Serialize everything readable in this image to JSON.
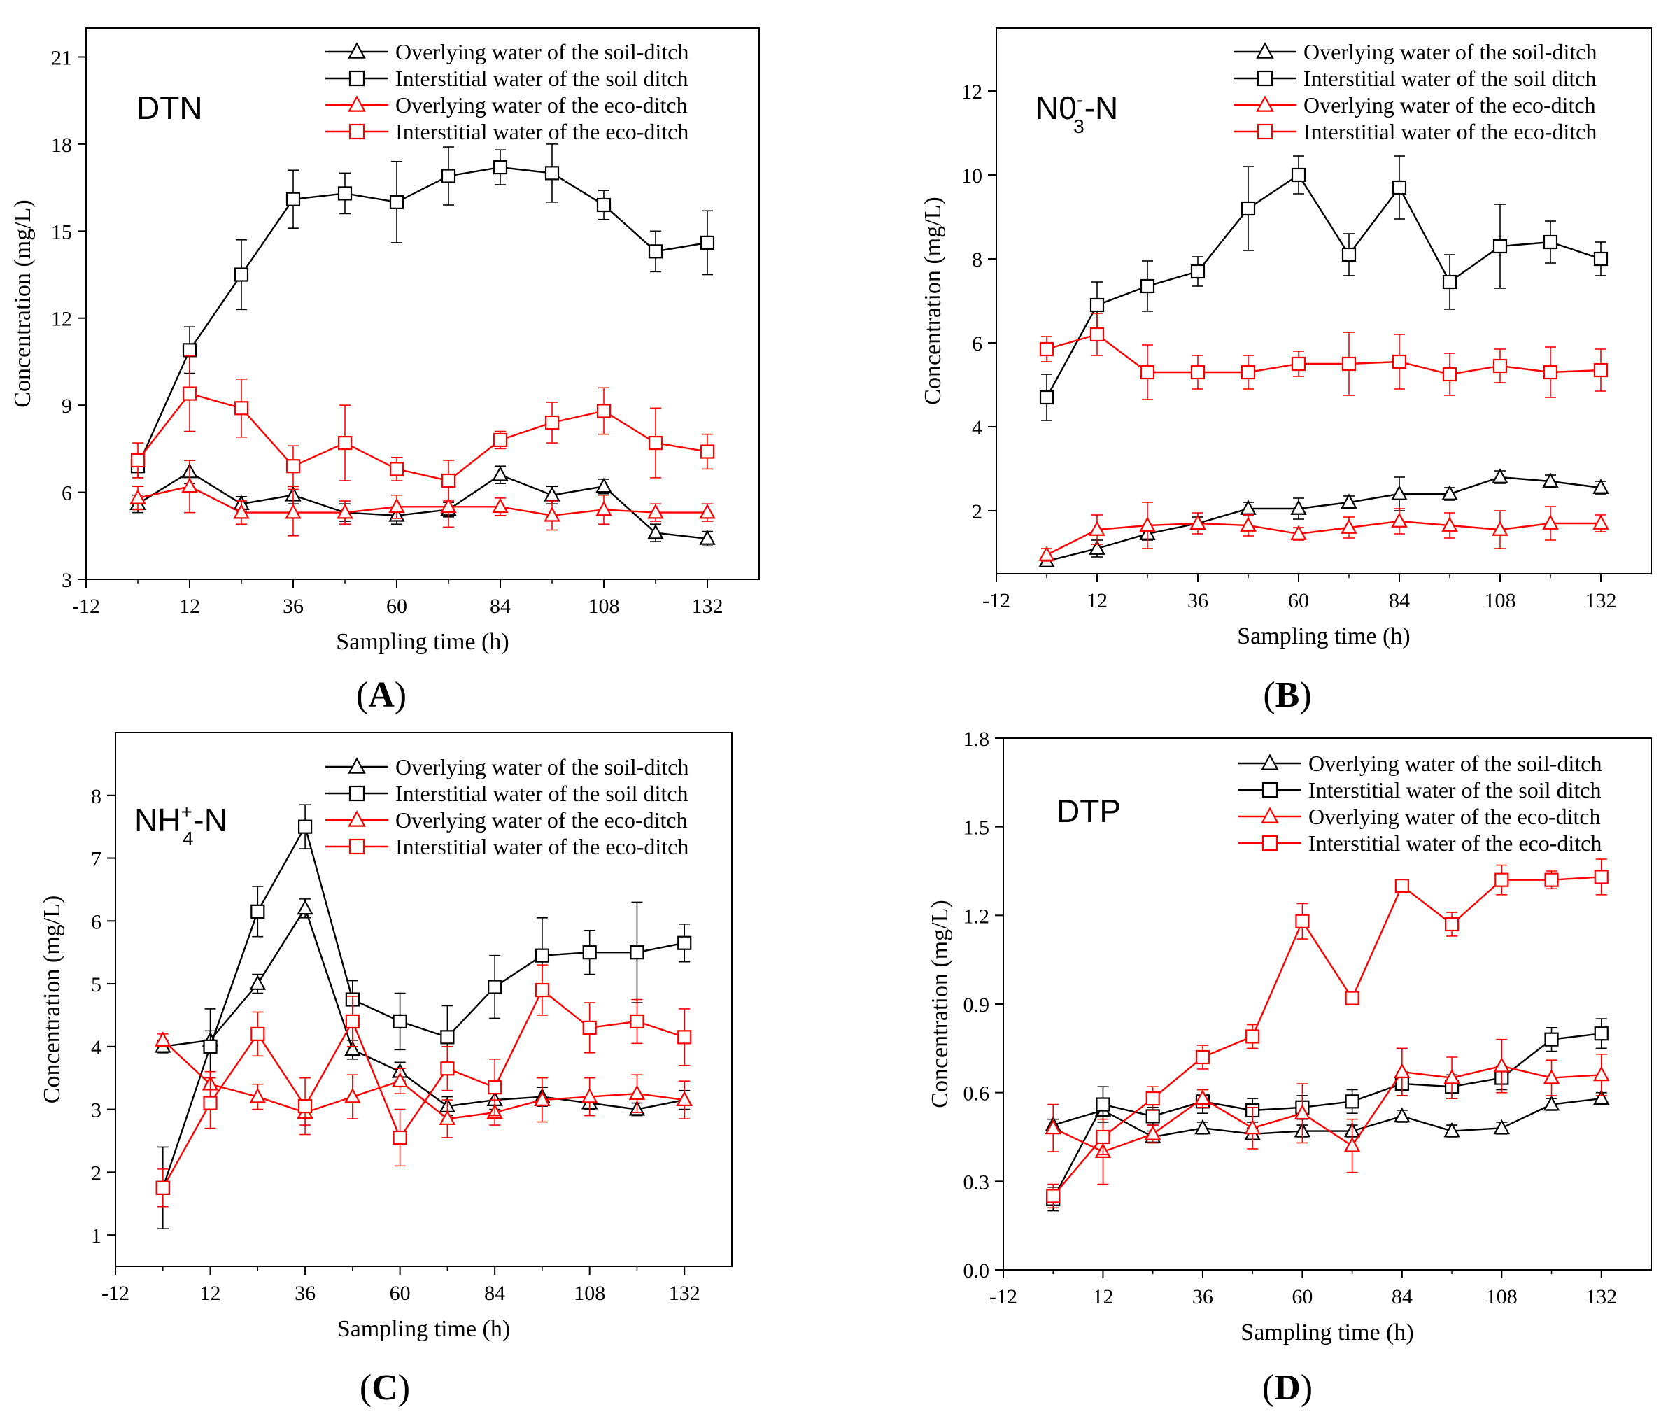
{
  "figure": {
    "x_ticks": [
      "-12",
      "12",
      "36",
      "60",
      "84",
      "108",
      "132"
    ],
    "legend_order_note": ""
  },
  "chart_data": [
    {
      "id": "A",
      "type": "line",
      "panel_label": "A",
      "title_main": "DTN",
      "title_sup": "",
      "title_sub": "",
      "title_tail": "",
      "xlabel": "Sampling time (h)",
      "ylabel": "Concentration (mg/L)",
      "xlim": [
        -12,
        144
      ],
      "ylim": [
        3,
        22
      ],
      "yticks": [
        3,
        6,
        9,
        12,
        15,
        18,
        21
      ],
      "ytick_labels": [
        "3",
        "6",
        "9",
        "12",
        "15",
        "18",
        "21"
      ],
      "x": [
        0,
        12,
        24,
        36,
        48,
        60,
        72,
        84,
        96,
        108,
        120,
        132
      ],
      "series": [
        {
          "name": "Overlying water of the soil-ditch",
          "color": "#000000",
          "marker": "triangle",
          "values": [
            5.6,
            6.7,
            5.6,
            5.9,
            5.3,
            5.2,
            5.4,
            6.6,
            5.9,
            6.2,
            4.6,
            4.4
          ],
          "errors": [
            0.3,
            0.4,
            0.25,
            0.3,
            0.3,
            0.3,
            0.25,
            0.3,
            0.3,
            0.25,
            0.3,
            0.25
          ]
        },
        {
          "name": "Interstitial water of the soil ditch",
          "color": "#000000",
          "marker": "square",
          "values": [
            6.9,
            10.9,
            13.5,
            16.1,
            16.3,
            16.0,
            16.9,
            17.2,
            17.0,
            15.9,
            14.3,
            14.6
          ],
          "errors": [
            0.4,
            0.8,
            1.2,
            1.0,
            0.7,
            1.4,
            1.0,
            0.6,
            1.0,
            0.5,
            0.7,
            1.1
          ]
        },
        {
          "name": "Overlying water of the eco-ditch",
          "color": "#ff0000",
          "marker": "triangle",
          "values": [
            5.8,
            6.2,
            5.3,
            5.3,
            5.3,
            5.5,
            5.5,
            5.5,
            5.2,
            5.4,
            5.3,
            5.3
          ],
          "errors": [
            0.4,
            0.9,
            0.4,
            0.8,
            0.4,
            0.4,
            0.7,
            0.3,
            0.5,
            0.5,
            0.3,
            0.3
          ]
        },
        {
          "name": "Interstitial water of the eco-ditch",
          "color": "#ff0000",
          "marker": "square",
          "values": [
            7.1,
            9.4,
            8.9,
            6.9,
            7.7,
            6.8,
            6.4,
            7.8,
            8.4,
            8.8,
            7.7,
            7.4
          ],
          "errors": [
            0.6,
            1.3,
            1.0,
            0.7,
            1.3,
            0.4,
            0.7,
            0.3,
            0.7,
            0.8,
            1.2,
            0.6
          ]
        }
      ]
    },
    {
      "id": "B",
      "type": "line",
      "panel_label": "B",
      "title_main": "N0",
      "title_sup": "-",
      "title_sub": "3",
      "title_tail": "-N",
      "xlabel": "Sampling time (h)",
      "ylabel": "Concentration (mg/L)",
      "xlim": [
        -12,
        144
      ],
      "ylim": [
        0.5,
        13.5
      ],
      "yticks": [
        2,
        4,
        6,
        8,
        10,
        12
      ],
      "ytick_labels": [
        "2",
        "4",
        "6",
        "8",
        "10",
        "12"
      ],
      "x": [
        0,
        12,
        24,
        36,
        48,
        60,
        72,
        84,
        96,
        108,
        120,
        132
      ],
      "series": [
        {
          "name": "Overlying water of the soil-ditch",
          "color": "#000000",
          "marker": "triangle",
          "values": [
            0.8,
            1.1,
            1.45,
            1.7,
            2.05,
            2.05,
            2.2,
            2.4,
            2.4,
            2.8,
            2.7,
            2.55
          ],
          "errors": [
            0.1,
            0.2,
            0.15,
            0.15,
            0.15,
            0.25,
            0.15,
            0.4,
            0.15,
            0.15,
            0.15,
            0.15
          ]
        },
        {
          "name": "Interstitial water of the soil ditch",
          "color": "#000000",
          "marker": "square",
          "values": [
            4.7,
            6.9,
            7.35,
            7.7,
            9.2,
            10.0,
            8.1,
            9.7,
            7.45,
            8.3,
            8.4,
            8.0
          ],
          "errors": [
            0.55,
            0.55,
            0.6,
            0.35,
            1.0,
            0.45,
            0.5,
            0.75,
            0.65,
            1.0,
            0.5,
            0.4
          ]
        },
        {
          "name": "Overlying water of the eco-ditch",
          "color": "#ff0000",
          "marker": "triangle",
          "values": [
            0.95,
            1.55,
            1.65,
            1.7,
            1.65,
            1.45,
            1.6,
            1.75,
            1.65,
            1.55,
            1.7,
            1.7
          ],
          "errors": [
            0.15,
            0.35,
            0.55,
            0.25,
            0.25,
            0.15,
            0.25,
            0.3,
            0.3,
            0.45,
            0.4,
            0.2
          ]
        },
        {
          "name": "Interstitial water of the eco-ditch",
          "color": "#ff0000",
          "marker": "square",
          "values": [
            5.85,
            6.2,
            5.3,
            5.3,
            5.3,
            5.5,
            5.5,
            5.55,
            5.25,
            5.45,
            5.3,
            5.35
          ],
          "errors": [
            0.3,
            0.5,
            0.65,
            0.4,
            0.4,
            0.3,
            0.75,
            0.65,
            0.5,
            0.4,
            0.6,
            0.5
          ]
        }
      ]
    },
    {
      "id": "C",
      "type": "line",
      "panel_label": "C",
      "title_main": "NH",
      "title_sup": "+",
      "title_sub": "4",
      "title_tail": "-N",
      "xlabel": "Sampling time (h)",
      "ylabel": "Concentration (mg/L)",
      "xlim": [
        -12,
        144
      ],
      "ylim": [
        0.5,
        9
      ],
      "yticks": [
        1,
        2,
        3,
        4,
        5,
        6,
        7,
        8
      ],
      "ytick_labels": [
        "1",
        "2",
        "3",
        "4",
        "5",
        "6",
        "7",
        "8"
      ],
      "x": [
        0,
        12,
        24,
        36,
        48,
        60,
        72,
        84,
        96,
        108,
        120,
        132
      ],
      "series": [
        {
          "name": "Overlying water of the soil-ditch",
          "color": "#000000",
          "marker": "triangle",
          "values": [
            4.0,
            4.1,
            5.0,
            6.2,
            3.95,
            3.6,
            3.05,
            3.15,
            3.2,
            3.1,
            3.0,
            3.15
          ],
          "errors": [
            0.1,
            0.15,
            0.15,
            0.15,
            0.15,
            0.15,
            0.15,
            0.15,
            0.15,
            0.1,
            0.1,
            0.15
          ]
        },
        {
          "name": "Interstitial water of the soil ditch",
          "color": "#000000",
          "marker": "square",
          "values": [
            1.75,
            4.0,
            6.15,
            7.5,
            4.75,
            4.4,
            4.15,
            4.95,
            5.45,
            5.5,
            5.5,
            5.65
          ],
          "errors": [
            0.65,
            0.6,
            0.4,
            0.35,
            0.3,
            0.45,
            0.5,
            0.5,
            0.6,
            0.35,
            0.8,
            0.3
          ]
        },
        {
          "name": "Overlying water of the eco-ditch",
          "color": "#ff0000",
          "marker": "triangle",
          "values": [
            4.1,
            3.4,
            3.2,
            2.95,
            3.2,
            3.45,
            2.85,
            2.95,
            3.15,
            3.2,
            3.25,
            3.15
          ],
          "errors": [
            0.1,
            0.2,
            0.2,
            0.2,
            0.35,
            0.2,
            0.3,
            0.2,
            0.35,
            0.3,
            0.3,
            0.3
          ]
        },
        {
          "name": "Interstitial water of the eco-ditch",
          "color": "#ff0000",
          "marker": "square",
          "values": [
            1.75,
            3.1,
            4.2,
            3.05,
            4.4,
            2.55,
            3.65,
            3.35,
            4.9,
            4.3,
            4.4,
            4.15
          ]
        }
      ]
    },
    {
      "id": "D",
      "type": "line",
      "panel_label": "D",
      "title_main": "DTP",
      "title_sup": "",
      "title_sub": "",
      "title_tail": "",
      "xlabel": "Sampling time (h)",
      "ylabel": "Concentration (mg/L)",
      "xlim": [
        -12,
        144
      ],
      "ylim": [
        0,
        1.8
      ],
      "yticks": [
        0.0,
        0.3,
        0.6,
        0.9,
        1.2,
        1.5,
        1.8
      ],
      "ytick_labels": [
        "0.0",
        "0.3",
        "0.6",
        "0.9",
        "1.2",
        "1.5",
        "1.8"
      ],
      "x": [
        0,
        12,
        24,
        36,
        48,
        60,
        72,
        84,
        96,
        108,
        120,
        132
      ],
      "series": [
        {
          "name": "Overlying water of the soil-ditch",
          "color": "#000000",
          "marker": "triangle",
          "values": [
            0.49,
            0.54,
            0.45,
            0.48,
            0.46,
            0.47,
            0.47,
            0.52,
            0.47,
            0.48,
            0.56,
            0.58
          ],
          "errors": [
            0.02,
            0.02,
            0.02,
            0.02,
            0.02,
            0.02,
            0.02,
            0.02,
            0.02,
            0.02,
            0.02,
            0.02
          ]
        },
        {
          "name": "Interstitial water of the soil ditch",
          "color": "#000000",
          "marker": "square",
          "values": [
            0.24,
            0.56,
            0.52,
            0.57,
            0.54,
            0.55,
            0.57,
            0.63,
            0.62,
            0.65,
            0.78,
            0.8
          ],
          "errors": [
            0.04,
            0.06,
            0.03,
            0.04,
            0.04,
            0.04,
            0.04,
            0.04,
            0.04,
            0.04,
            0.04,
            0.05
          ]
        },
        {
          "name": "Overlying water of the eco-ditch",
          "color": "#ff0000",
          "marker": "triangle",
          "values": [
            0.48,
            0.4,
            0.46,
            0.58,
            0.48,
            0.53,
            0.42,
            0.67,
            0.65,
            0.69,
            0.65,
            0.66
          ],
          "errors": [
            0.08,
            0.11,
            0.03,
            0.03,
            0.07,
            0.1,
            0.09,
            0.08,
            0.07,
            0.09,
            0.06,
            0.07
          ]
        },
        {
          "name": "Interstitial water of the eco-ditch",
          "color": "#ff0000",
          "marker": "square",
          "values": [
            0.25,
            0.45,
            0.58,
            0.72,
            0.79,
            1.18,
            0.92,
            1.3,
            1.17,
            1.32,
            1.32,
            1.33
          ],
          "errors": [
            0.04,
            0.06,
            0.04,
            0.04,
            0.04,
            0.06,
            0.02,
            0.01,
            0.04,
            0.05,
            0.03,
            0.06
          ]
        }
      ]
    }
  ]
}
